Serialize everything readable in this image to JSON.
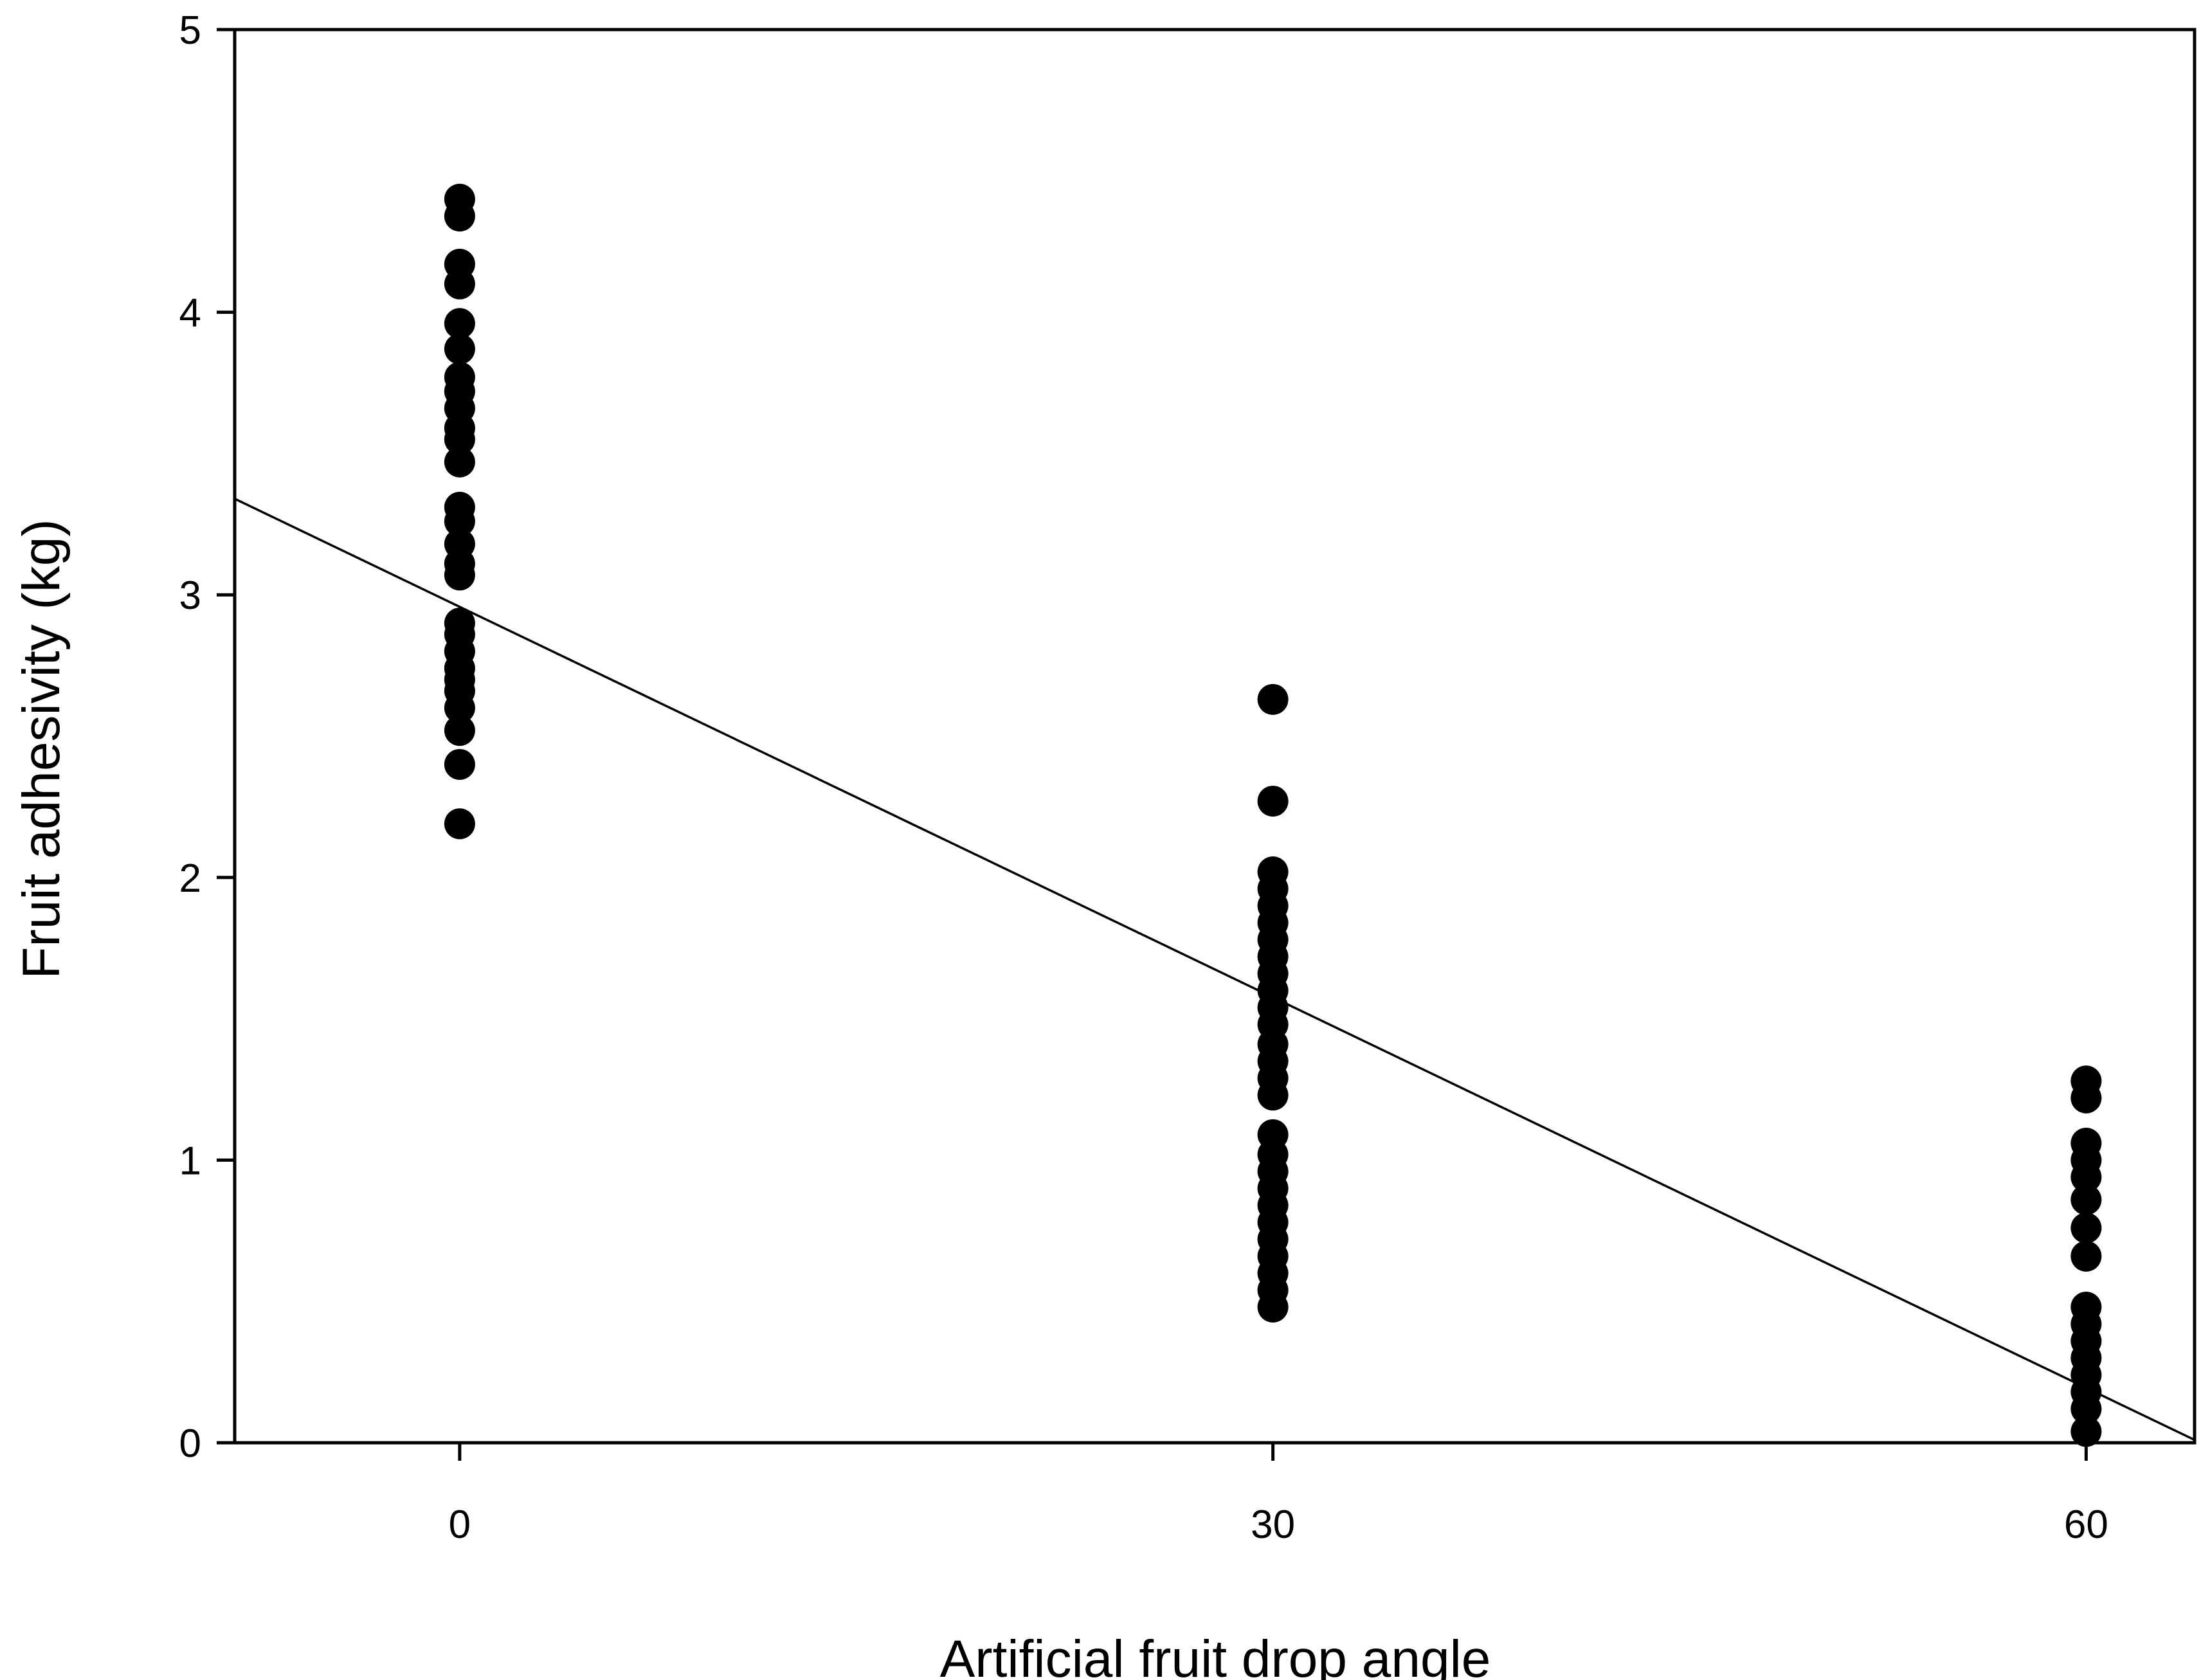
{
  "chart_data": {
    "type": "scatter",
    "title": "",
    "xlabel": "Artificial fruit drop angle",
    "ylabel": "Fruit adhesivity (kg)",
    "xlim": [
      -8.3,
      64
    ],
    "ylim": [
      0,
      5
    ],
    "x_ticks": [
      0,
      30,
      60
    ],
    "y_ticks": [
      0,
      1,
      2,
      3,
      4,
      5
    ],
    "grid": false,
    "legend": "none",
    "colors": {
      "points": "#000000",
      "line": "#000000",
      "axes": "#000000",
      "background": "#ffffff"
    },
    "series": [
      {
        "type": "scatter",
        "points": [
          {
            "x": 0,
            "y": 4.4
          },
          {
            "x": 0,
            "y": 4.34
          },
          {
            "x": 0,
            "y": 4.17
          },
          {
            "x": 0,
            "y": 4.1
          },
          {
            "x": 0,
            "y": 3.96
          },
          {
            "x": 0,
            "y": 3.87
          },
          {
            "x": 0,
            "y": 3.77
          },
          {
            "x": 0,
            "y": 3.72
          },
          {
            "x": 0,
            "y": 3.66
          },
          {
            "x": 0,
            "y": 3.59
          },
          {
            "x": 0,
            "y": 3.55
          },
          {
            "x": 0,
            "y": 3.47
          },
          {
            "x": 0,
            "y": 3.31
          },
          {
            "x": 0,
            "y": 3.26
          },
          {
            "x": 0,
            "y": 3.18
          },
          {
            "x": 0,
            "y": 3.11
          },
          {
            "x": 0,
            "y": 3.07
          },
          {
            "x": 0,
            "y": 2.9
          },
          {
            "x": 0,
            "y": 2.86
          },
          {
            "x": 0,
            "y": 2.8
          },
          {
            "x": 0,
            "y": 2.74
          },
          {
            "x": 0,
            "y": 2.7
          },
          {
            "x": 0,
            "y": 2.66
          },
          {
            "x": 0,
            "y": 2.6
          },
          {
            "x": 0,
            "y": 2.52
          },
          {
            "x": 0,
            "y": 2.4
          },
          {
            "x": 0,
            "y": 2.19
          },
          {
            "x": 30,
            "y": 2.63
          },
          {
            "x": 30,
            "y": 2.27
          },
          {
            "x": 30,
            "y": 2.02
          },
          {
            "x": 30,
            "y": 1.96
          },
          {
            "x": 30,
            "y": 1.9
          },
          {
            "x": 30,
            "y": 1.84
          },
          {
            "x": 30,
            "y": 1.78
          },
          {
            "x": 30,
            "y": 1.72
          },
          {
            "x": 30,
            "y": 1.66
          },
          {
            "x": 30,
            "y": 1.6
          },
          {
            "x": 30,
            "y": 1.54
          },
          {
            "x": 30,
            "y": 1.48
          },
          {
            "x": 30,
            "y": 1.41
          },
          {
            "x": 30,
            "y": 1.35
          },
          {
            "x": 30,
            "y": 1.29
          },
          {
            "x": 30,
            "y": 1.23
          },
          {
            "x": 30,
            "y": 1.09
          },
          {
            "x": 30,
            "y": 1.02
          },
          {
            "x": 30,
            "y": 0.96
          },
          {
            "x": 30,
            "y": 0.9
          },
          {
            "x": 30,
            "y": 0.84
          },
          {
            "x": 30,
            "y": 0.78
          },
          {
            "x": 30,
            "y": 0.72
          },
          {
            "x": 30,
            "y": 0.66
          },
          {
            "x": 30,
            "y": 0.6
          },
          {
            "x": 30,
            "y": 0.54
          },
          {
            "x": 30,
            "y": 0.48
          },
          {
            "x": 60,
            "y": 1.28
          },
          {
            "x": 60,
            "y": 1.22
          },
          {
            "x": 60,
            "y": 1.06
          },
          {
            "x": 60,
            "y": 1.0
          },
          {
            "x": 60,
            "y": 0.94
          },
          {
            "x": 60,
            "y": 0.86
          },
          {
            "x": 60,
            "y": 0.76
          },
          {
            "x": 60,
            "y": 0.66
          },
          {
            "x": 60,
            "y": 0.48
          },
          {
            "x": 60,
            "y": 0.42
          },
          {
            "x": 60,
            "y": 0.36
          },
          {
            "x": 60,
            "y": 0.3
          },
          {
            "x": 60,
            "y": 0.24
          },
          {
            "x": 60,
            "y": 0.18
          },
          {
            "x": 60,
            "y": 0.12
          },
          {
            "x": 60,
            "y": 0.04
          }
        ]
      },
      {
        "type": "line",
        "points": [
          {
            "x": -8.3,
            "y": 3.34
          },
          {
            "x": 64,
            "y": 0.01
          }
        ]
      }
    ]
  }
}
